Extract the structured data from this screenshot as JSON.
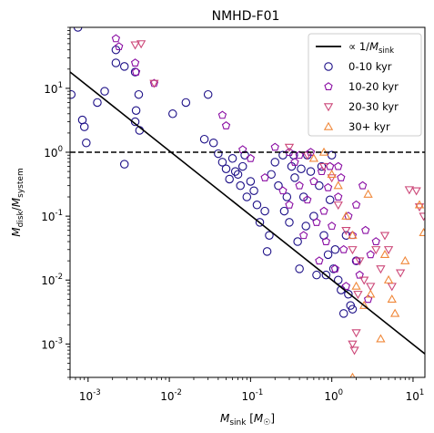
{
  "chart_data": {
    "type": "scatter",
    "title": "NMHD-F01",
    "xlabel": "M_sink [M_☉]",
    "ylabel": "M_disk/M_system",
    "x_scale": "log",
    "y_scale": "log",
    "xlim": [
      0.0006,
      14
    ],
    "ylim": [
      0.0003,
      90
    ],
    "x_ticks": [
      {
        "value": 0.001,
        "label": "10^-3"
      },
      {
        "value": 0.01,
        "label": "10^-2"
      },
      {
        "value": 0.1,
        "label": "10^-1"
      },
      {
        "value": 1,
        "label": "10^0"
      },
      {
        "value": 10,
        "label": "10^1"
      }
    ],
    "y_ticks": [
      {
        "value": 0.001,
        "label": "10^-3"
      },
      {
        "value": 0.01,
        "label": "10^-2"
      },
      {
        "value": 0.1,
        "label": "10^-1"
      },
      {
        "value": 1,
        "label": "10^0"
      },
      {
        "value": 10,
        "label": "10^1"
      }
    ],
    "grid": false,
    "legend_position": "top-right",
    "reference_lines": [
      {
        "name": "∝ 1/M_sink",
        "type": "power_law",
        "points": [
          [
            0.0006,
            18
          ],
          [
            14,
            0.0007
          ]
        ],
        "color": "#000000",
        "style": "solid"
      },
      {
        "type": "horizontal",
        "y": 1.0,
        "color": "#000000",
        "style": "dashed"
      }
    ],
    "series": [
      {
        "name": "0-10 kyr",
        "marker": "circle",
        "color": "#1c0f87",
        "points": [
          [
            0.00062,
            8
          ],
          [
            0.00075,
            90
          ],
          [
            0.00085,
            3.2
          ],
          [
            0.0009,
            2.5
          ],
          [
            0.00095,
            1.4
          ],
          [
            0.0013,
            6
          ],
          [
            0.0016,
            9
          ],
          [
            0.0022,
            25
          ],
          [
            0.0022,
            40
          ],
          [
            0.0028,
            0.65
          ],
          [
            0.0028,
            22
          ],
          [
            0.0038,
            18
          ],
          [
            0.0038,
            3.0
          ],
          [
            0.0039,
            4.5
          ],
          [
            0.0042,
            8
          ],
          [
            0.0043,
            2.2
          ],
          [
            0.011,
            4.0
          ],
          [
            0.016,
            6
          ],
          [
            0.027,
            1.6
          ],
          [
            0.03,
            8
          ],
          [
            0.035,
            1.4
          ],
          [
            0.04,
            0.95
          ],
          [
            0.045,
            0.7
          ],
          [
            0.05,
            0.55
          ],
          [
            0.055,
            0.38
          ],
          [
            0.06,
            0.8
          ],
          [
            0.065,
            0.5
          ],
          [
            0.07,
            0.45
          ],
          [
            0.075,
            0.3
          ],
          [
            0.08,
            0.6
          ],
          [
            0.085,
            0.9
          ],
          [
            0.09,
            0.2
          ],
          [
            0.1,
            0.35
          ],
          [
            0.11,
            0.25
          ],
          [
            0.12,
            0.15
          ],
          [
            0.13,
            0.08
          ],
          [
            0.15,
            0.12
          ],
          [
            0.16,
            0.028
          ],
          [
            0.17,
            0.05
          ],
          [
            0.18,
            0.45
          ],
          [
            0.2,
            0.7
          ],
          [
            0.22,
            0.3
          ],
          [
            0.25,
            0.9
          ],
          [
            0.28,
            0.2
          ],
          [
            0.3,
            0.08
          ],
          [
            0.32,
            0.6
          ],
          [
            0.35,
            0.4
          ],
          [
            0.38,
            0.04
          ],
          [
            0.4,
            0.015
          ],
          [
            0.45,
            0.2
          ],
          [
            0.5,
            0.9
          ],
          [
            0.55,
            0.5
          ],
          [
            0.6,
            0.1
          ],
          [
            0.65,
            0.012
          ],
          [
            0.7,
            0.3
          ],
          [
            0.75,
            0.6
          ],
          [
            0.8,
            0.05
          ],
          [
            0.85,
            0.012
          ],
          [
            0.9,
            0.025
          ],
          [
            0.95,
            0.18
          ],
          [
            1.0,
            0.9
          ],
          [
            1.05,
            0.015
          ],
          [
            1.1,
            0.03
          ],
          [
            1.2,
            0.01
          ],
          [
            1.3,
            0.007
          ],
          [
            1.4,
            0.003
          ],
          [
            1.5,
            0.05
          ],
          [
            1.6,
            0.006
          ],
          [
            1.7,
            0.004
          ],
          [
            1.8,
            0.0035
          ],
          [
            2.0,
            0.02
          ],
          [
            0.26,
            0.12
          ],
          [
            0.34,
            0.9
          ],
          [
            0.42,
            0.55
          ],
          [
            0.48,
            0.07
          ]
        ]
      },
      {
        "name": "10-20 kyr",
        "marker": "pentagon",
        "color": "#8a0da3",
        "points": [
          [
            0.0022,
            60
          ],
          [
            0.0024,
            45
          ],
          [
            0.0038,
            25
          ],
          [
            0.0039,
            18
          ],
          [
            0.0065,
            12
          ],
          [
            0.045,
            3.8
          ],
          [
            0.05,
            2.6
          ],
          [
            0.08,
            1.1
          ],
          [
            0.1,
            0.8
          ],
          [
            0.15,
            0.4
          ],
          [
            0.2,
            1.2
          ],
          [
            0.25,
            0.25
          ],
          [
            0.3,
            0.15
          ],
          [
            0.35,
            0.7
          ],
          [
            0.4,
            0.3
          ],
          [
            0.45,
            0.05
          ],
          [
            0.5,
            0.18
          ],
          [
            0.55,
            1.0
          ],
          [
            0.6,
            0.35
          ],
          [
            0.65,
            0.08
          ],
          [
            0.7,
            0.02
          ],
          [
            0.75,
            0.5
          ],
          [
            0.8,
            0.12
          ],
          [
            0.85,
            0.04
          ],
          [
            0.9,
            0.28
          ],
          [
            0.95,
            0.6
          ],
          [
            1.0,
            0.07
          ],
          [
            1.1,
            0.015
          ],
          [
            1.2,
            0.2
          ],
          [
            1.3,
            0.4
          ],
          [
            1.4,
            0.03
          ],
          [
            1.5,
            0.008
          ],
          [
            1.6,
            0.1
          ],
          [
            1.8,
            0.05
          ],
          [
            2.0,
            0.02
          ],
          [
            2.2,
            0.012
          ],
          [
            2.4,
            0.3
          ],
          [
            2.6,
            0.06
          ],
          [
            2.8,
            0.005
          ],
          [
            3.0,
            0.025
          ],
          [
            3.5,
            0.04
          ],
          [
            0.3,
            1.0
          ],
          [
            0.4,
            0.9
          ],
          [
            1.2,
            0.6
          ],
          [
            2.0,
            0.15
          ]
        ]
      },
      {
        "name": "20-30 kyr",
        "marker": "triangle-down",
        "color": "#cc4778",
        "points": [
          [
            0.0038,
            48
          ],
          [
            0.0045,
            50
          ],
          [
            0.0065,
            12
          ],
          [
            0.3,
            1.2
          ],
          [
            0.5,
            0.9
          ],
          [
            0.8,
            0.6
          ],
          [
            1.0,
            0.4
          ],
          [
            1.2,
            0.15
          ],
          [
            1.5,
            0.06
          ],
          [
            1.8,
            0.03
          ],
          [
            1.8,
            0.001
          ],
          [
            1.9,
            0.0008
          ],
          [
            2.0,
            0.0015
          ],
          [
            2.1,
            0.006
          ],
          [
            2.2,
            0.02
          ],
          [
            2.5,
            0.01
          ],
          [
            3.0,
            0.008
          ],
          [
            3.5,
            0.03
          ],
          [
            4.0,
            0.015
          ],
          [
            4.5,
            0.05
          ],
          [
            5.0,
            0.03
          ],
          [
            5.5,
            0.008
          ],
          [
            7.0,
            0.013
          ],
          [
            9.0,
            0.26
          ],
          [
            11.0,
            0.25
          ],
          [
            12.0,
            0.14
          ],
          [
            13.5,
            0.1
          ]
        ]
      },
      {
        "name": "30+ kyr",
        "marker": "triangle-up",
        "color": "#f0883a",
        "points": [
          [
            0.6,
            0.8
          ],
          [
            0.8,
            1.0
          ],
          [
            1.0,
            0.45
          ],
          [
            1.2,
            0.3
          ],
          [
            1.5,
            0.1
          ],
          [
            1.8,
            0.05
          ],
          [
            1.8,
            0.0003
          ],
          [
            2.0,
            0.008
          ],
          [
            2.5,
            0.004
          ],
          [
            2.8,
            0.22
          ],
          [
            3.0,
            0.006
          ],
          [
            4.0,
            0.0012
          ],
          [
            4.5,
            0.025
          ],
          [
            5.0,
            0.01
          ],
          [
            5.5,
            0.005
          ],
          [
            6.0,
            0.003
          ],
          [
            8.0,
            0.02
          ],
          [
            12.0,
            0.15
          ],
          [
            13.5,
            0.055
          ]
        ]
      }
    ]
  }
}
